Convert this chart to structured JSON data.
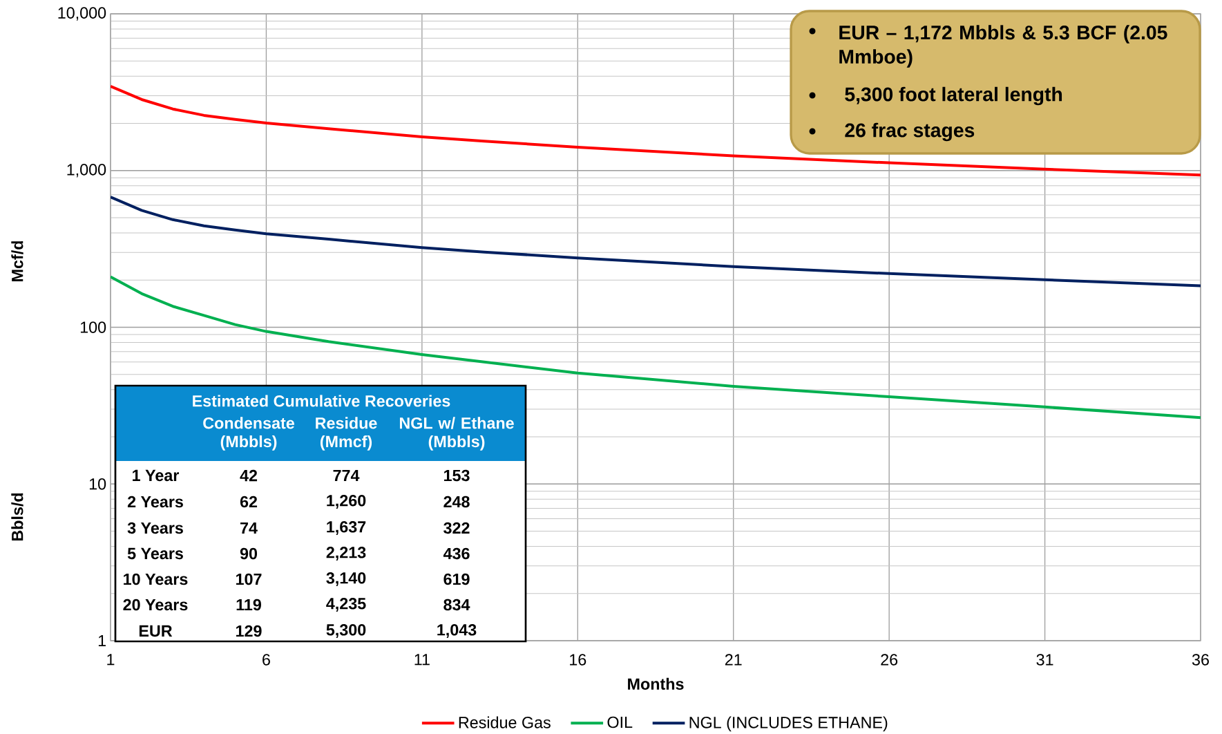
{
  "chart_data": {
    "type": "line",
    "xlabel": "Months",
    "ylabel": "Mcf/d",
    "x": [
      1,
      2,
      3,
      4,
      5,
      6,
      8,
      11,
      13,
      16,
      21,
      26,
      31,
      36
    ],
    "series": [
      {
        "name": "Residue Gas",
        "color": "#ff0000",
        "values": [
          3450,
          2840,
          2470,
          2250,
          2120,
          2010,
          1850,
          1640,
          1540,
          1410,
          1240,
          1120,
          1020,
          935
        ]
      },
      {
        "name": "OIL",
        "color": "#00b050",
        "values": [
          210,
          164,
          136,
          119,
          104,
          94,
          81,
          67,
          60,
          51,
          42,
          36,
          31,
          26.5
        ]
      },
      {
        "name": "NGL (INCLUDES ETHANE)",
        "color": "#002060",
        "values": [
          678,
          557,
          486,
          444,
          418,
          395,
          365,
          322,
          302,
          277,
          244,
          220,
          201,
          184
        ]
      }
    ],
    "xlim": [
      1,
      36
    ],
    "xticks": [
      1,
      6,
      11,
      16,
      21,
      26,
      31,
      36
    ],
    "ylim": [
      1,
      10000
    ],
    "yticks": [
      1,
      10,
      100,
      {
        "value": 1000,
        "label": "1,000"
      },
      {
        "value": 10000,
        "label": "10,000"
      }
    ],
    "log": "y",
    "grid": true,
    "legend": "bottom",
    "marker": "none",
    "line_style": "solid",
    "annotations": [
      "EUR – 1,172 Mbbls & 5.3 BCF (2.05 Mmboe)",
      "5,300 foot lateral length",
      "26 frac stages",
      "Bbls/d",
      "Estimated Cumulative Recoveries",
      "Condensate (Mbbls)",
      "Residue (Mmcf)",
      "NGL w/ Ethane (Mbbls)",
      "1 Year",
      "42",
      "774",
      "153",
      "2 Years",
      "62",
      "1,260",
      "248",
      "3 Years",
      "74",
      "1,637",
      "322",
      "5 Years",
      "90",
      "2,213",
      "436",
      "10 Years",
      "107",
      "3,140",
      "619",
      "20 Years",
      "119",
      "4,235",
      "834",
      "EUR",
      "129",
      "5,300",
      "1,043"
    ]
  }
}
